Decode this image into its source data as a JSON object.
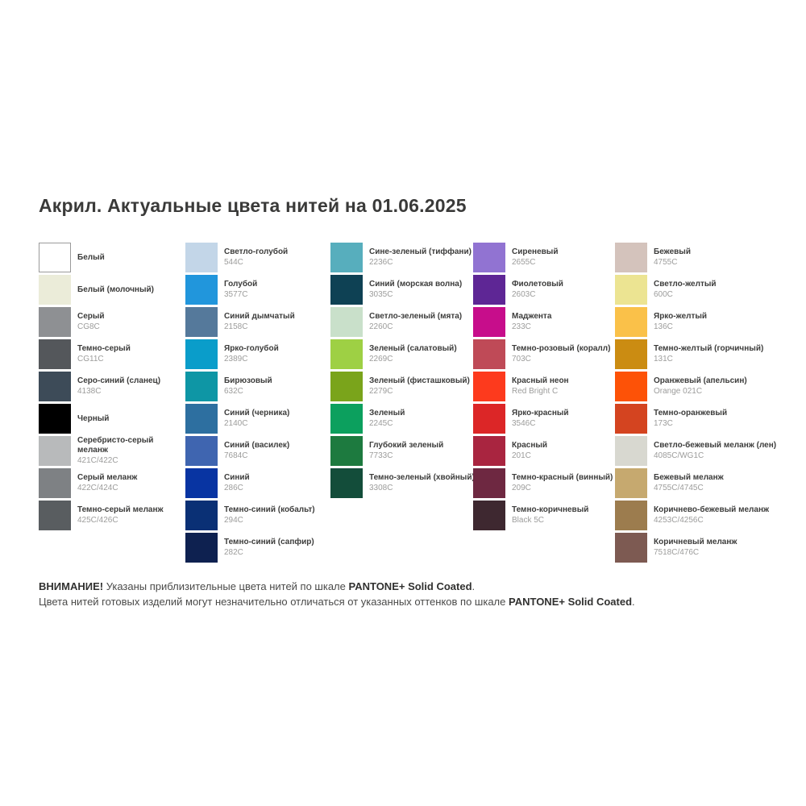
{
  "title": "Акрил. Актуальные цвета нитей на 01.06.2025",
  "columns": [
    {
      "items": [
        {
          "name": "Белый",
          "code": "",
          "color": "#ffffff",
          "border": true
        },
        {
          "name": "Белый (молочный)",
          "code": "",
          "color": "#ebecd9"
        },
        {
          "name": "Серый",
          "code": "CG8C",
          "color": "#8e9093"
        },
        {
          "name": "Темно-серый",
          "code": "CG11C",
          "color": "#54575b"
        },
        {
          "name": "Серо-синий (сланец)",
          "code": "4138C",
          "color": "#3d4b58"
        },
        {
          "name": "Черный",
          "code": "",
          "color": "#000000"
        },
        {
          "name": "Серебристо-серый\nмеланж",
          "code": "421C/422C",
          "color": "#b8babb"
        },
        {
          "name": "Серый меланж",
          "code": "422C/424C",
          "color": "#7e8184"
        },
        {
          "name": "Темно-серый меланж",
          "code": "425C/426C",
          "color": "#595d60"
        }
      ]
    },
    {
      "items": [
        {
          "name": "Светло-голубой",
          "code": "544C",
          "color": "#c3d6e8"
        },
        {
          "name": "Голубой",
          "code": "3577C",
          "color": "#2196dc"
        },
        {
          "name": "Синий дымчатый",
          "code": "2158C",
          "color": "#55799b"
        },
        {
          "name": "Ярко-голубой",
          "code": "2389C",
          "color": "#0a9dca"
        },
        {
          "name": "Бирюзовый",
          "code": "632C",
          "color": "#0e96a5"
        },
        {
          "name": "Синий (черника)",
          "code": "2140C",
          "color": "#2d6fa0"
        },
        {
          "name": "Синий (василек)",
          "code": "7684C",
          "color": "#3f65b0"
        },
        {
          "name": "Синий",
          "code": "286C",
          "color": "#0834a2"
        },
        {
          "name": "Темно-синий (кобальт)",
          "code": "294C",
          "color": "#0a3075"
        },
        {
          "name": "Темно-синий (сапфир)",
          "code": "282C",
          "color": "#0e2150"
        }
      ]
    },
    {
      "items": [
        {
          "name": "Сине-зеленый (тиффани)",
          "code": "2236C",
          "color": "#57aebd"
        },
        {
          "name": "Синий (морская волна)",
          "code": "3035C",
          "color": "#0e4154"
        },
        {
          "name": "Светло-зеленый (мята)",
          "code": "2260C",
          "color": "#c9e0ca"
        },
        {
          "name": "Зеленый (салатовый)",
          "code": "2269C",
          "color": "#9ed044"
        },
        {
          "name": "Зеленый (фисташковый)",
          "code": "2279C",
          "color": "#7aa41b"
        },
        {
          "name": "Зеленый",
          "code": "2245C",
          "color": "#0ca05e"
        },
        {
          "name": "Глубокий зеленый",
          "code": "7733C",
          "color": "#1d7a3f"
        },
        {
          "name": "Темно-зеленый (хвойный)",
          "code": "3308C",
          "color": "#134d3a"
        }
      ]
    },
    {
      "items": [
        {
          "name": "Сиреневый",
          "code": "2655C",
          "color": "#9173d2"
        },
        {
          "name": "Фиолетовый",
          "code": "2603C",
          "color": "#5e2695"
        },
        {
          "name": "Маджента",
          "code": "233C",
          "color": "#c70d8b"
        },
        {
          "name": "Темно-розовый (коралл)",
          "code": "703C",
          "color": "#bf4a57"
        },
        {
          "name": "Красный неон",
          "code": "Red Bright C",
          "color": "#fd3a1d"
        },
        {
          "name": "Ярко-красный",
          "code": "3546C",
          "color": "#dc2627"
        },
        {
          "name": "Красный",
          "code": "201C",
          "color": "#a92540"
        },
        {
          "name": "Темно-красный (винный)",
          "code": "209C",
          "color": "#6e2841"
        },
        {
          "name": "Темно-коричневый",
          "code": "Black 5C",
          "color": "#3e2830"
        }
      ]
    },
    {
      "items": [
        {
          "name": "Бежевый",
          "code": "4755C",
          "color": "#d4c3bc"
        },
        {
          "name": "Светло-желтый",
          "code": "600C",
          "color": "#ece492"
        },
        {
          "name": "Ярко-желтый",
          "code": "136C",
          "color": "#fac149"
        },
        {
          "name": "Темно-желтый (горчичный)",
          "code": "131C",
          "color": "#cb8c12"
        },
        {
          "name": "Оранжевый (апельсин)",
          "code": "Orange 021C",
          "color": "#fd5207"
        },
        {
          "name": "Темно-оранжевый",
          "code": "173C",
          "color": "#d44420"
        },
        {
          "name": "Светло-бежевый меланж (лен)",
          "code": "4085C/WG1C",
          "color": "#d8d8d0"
        },
        {
          "name": "Бежевый меланж",
          "code": "4755C/4745C",
          "color": "#c6a96f"
        },
        {
          "name": "Коричнево-бежевый меланж",
          "code": "4253C/4256C",
          "color": "#9c7c4e"
        },
        {
          "name": "Коричневый меланж",
          "code": "7518C/476C",
          "color": "#7d5a52"
        }
      ]
    }
  ],
  "footer": {
    "line1": {
      "b1": "ВНИМАНИЕ!",
      "t1": " Указаны приблизительные цвета нитей по шкале ",
      "b2": "PANTONE+ Solid Coated",
      "t2": "."
    },
    "line2": {
      "t1": "Цвета нитей готовых изделий могут незначительно отличаться от указанных оттенков по шкале ",
      "b2": "PANTONE+ Solid Coated",
      "t2": "."
    }
  }
}
